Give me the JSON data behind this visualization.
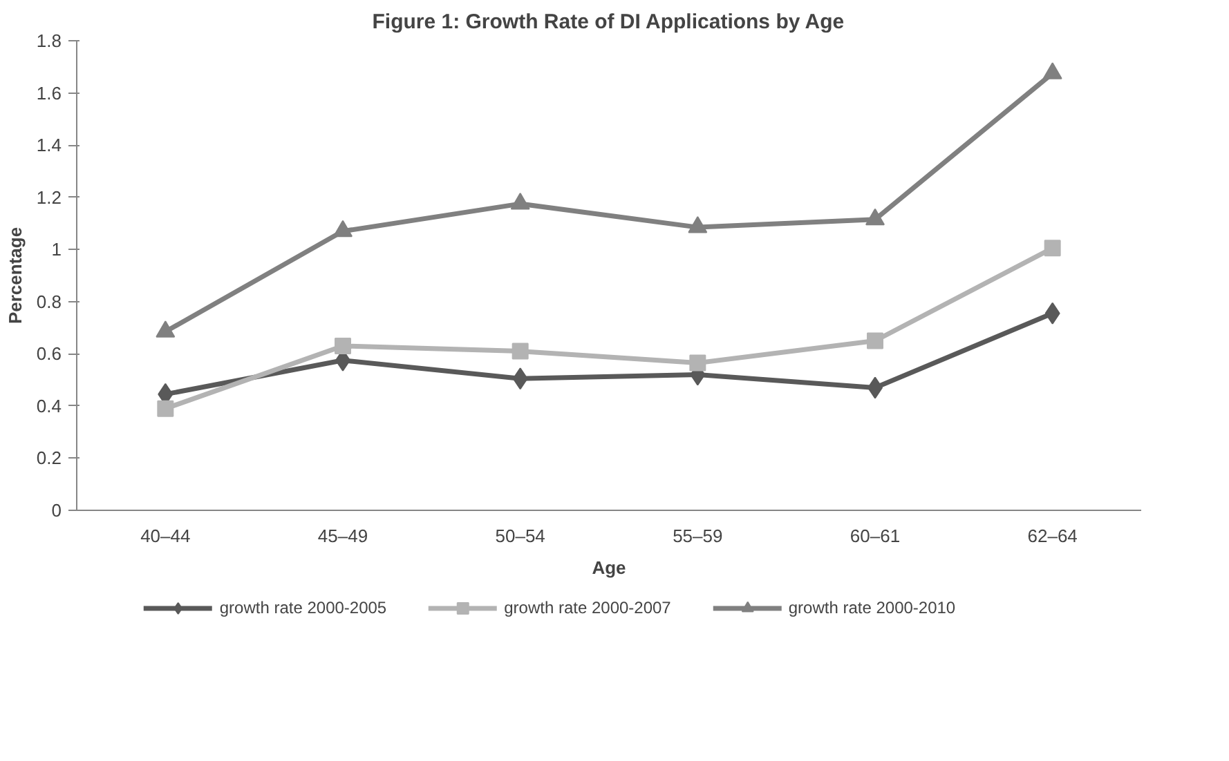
{
  "chart_data": {
    "type": "line",
    "title": "Figure 1: Growth Rate of DI Applications by Age",
    "xlabel": "Age",
    "ylabel": "Percentage",
    "categories": [
      "40–44",
      "45–49",
      "50–54",
      "55–59",
      "60–61",
      "62–64"
    ],
    "series": [
      {
        "name": "growth rate 2000-2005",
        "color": "#595959",
        "marker": "diamond",
        "values": [
          0.445,
          0.575,
          0.505,
          0.52,
          0.47,
          0.755
        ]
      },
      {
        "name": "growth rate 2000-2007",
        "color": "#b3b3b3",
        "marker": "square",
        "values": [
          0.39,
          0.63,
          0.61,
          0.565,
          0.65,
          1.005
        ]
      },
      {
        "name": "growth rate 2000-2010",
        "color": "#808080",
        "marker": "triangle",
        "values": [
          0.685,
          1.07,
          1.175,
          1.085,
          1.115,
          1.675
        ]
      }
    ],
    "ylim": [
      0,
      1.8
    ],
    "yticks": [
      0,
      0.2,
      0.4,
      0.6,
      0.8,
      1,
      1.2,
      1.4,
      1.6,
      1.8
    ],
    "grid": false,
    "legend": "bottom",
    "line_style": "solid"
  }
}
